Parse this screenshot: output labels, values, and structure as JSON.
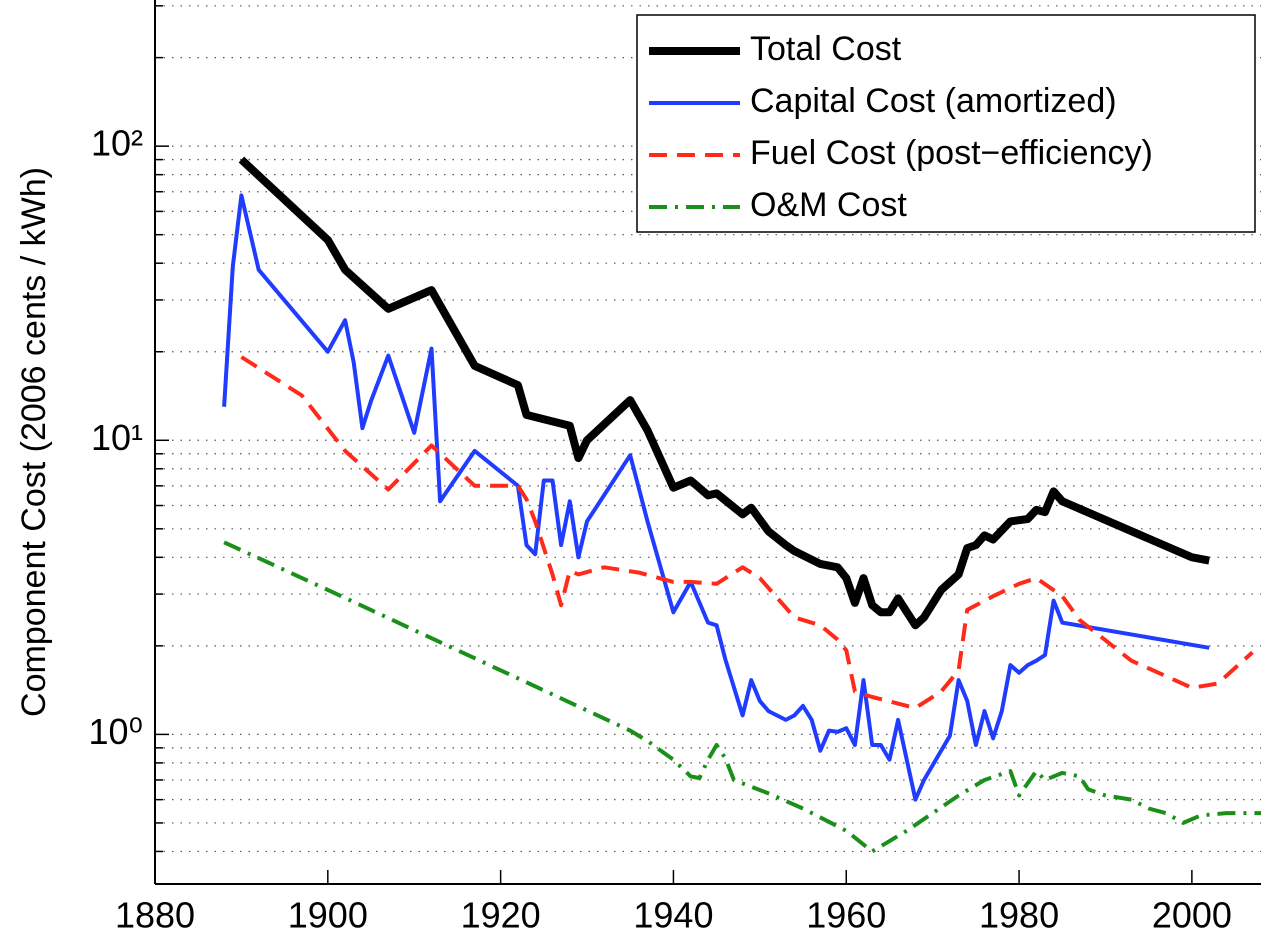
{
  "chart_data": {
    "type": "line",
    "y_label": "Component Cost (2006 cents / kWh)",
    "log_y": true,
    "grid": true,
    "legend": "upper right",
    "xlim": [
      1880,
      2008
    ],
    "xticks": [
      1880,
      1900,
      1920,
      1940,
      1960,
      1980,
      2000
    ],
    "ylim": [
      0.31,
      314
    ],
    "yticks": [
      {
        "value": 1,
        "label": "10⁰"
      },
      {
        "value": 10,
        "label": "10¹"
      },
      {
        "value": 100,
        "label": "10²"
      }
    ],
    "yminorticks": [
      0.4,
      0.5,
      0.6,
      0.7,
      0.8,
      0.9,
      2,
      3,
      4,
      5,
      6,
      7,
      8,
      9,
      20,
      30,
      40,
      50,
      60,
      70,
      80,
      90,
      200,
      300
    ],
    "series": [
      {
        "name": "Total Cost",
        "color": "#000000",
        "line_width": 8,
        "line_style": "solid",
        "x": [
          1890,
          1900,
          1902,
          1907,
          1912,
          1917,
          1922,
          1923,
          1928,
          1929,
          1930,
          1935,
          1937,
          1940,
          1942,
          1944,
          1945,
          1948,
          1949,
          1951,
          1953,
          1954,
          1957,
          1959,
          1960,
          1961,
          1962,
          1963,
          1964,
          1965,
          1966,
          1968,
          1969,
          1971,
          1973,
          1974,
          1975,
          1976,
          1977,
          1979,
          1981,
          1982,
          1983,
          1984,
          1985,
          2000,
          2002
        ],
        "values": [
          90,
          48,
          38,
          28,
          32.4,
          17.9,
          15.4,
          12.2,
          11.2,
          8.7,
          10,
          13.7,
          10.8,
          6.9,
          7.3,
          6.5,
          6.6,
          5.6,
          5.9,
          4.9,
          4.4,
          4.2,
          3.8,
          3.7,
          3.4,
          2.8,
          3.4,
          2.75,
          2.6,
          2.6,
          2.9,
          2.35,
          2.5,
          3.1,
          3.5,
          4.3,
          4.4,
          4.75,
          4.6,
          5.3,
          5.4,
          5.8,
          5.7,
          6.7,
          6.2,
          4.0,
          3.9
        ]
      },
      {
        "name": "Capital Cost (amortized)",
        "color": "#1f3cff",
        "line_width": 4,
        "line_style": "solid",
        "x": [
          1888,
          1889,
          1890,
          1892,
          1900,
          1902,
          1903,
          1904,
          1905,
          1907,
          1910,
          1912,
          1913,
          1917,
          1922,
          1923,
          1924,
          1925,
          1926,
          1927,
          1928,
          1929,
          1930,
          1935,
          1937,
          1940,
          1942,
          1944,
          1945,
          1946,
          1948,
          1949,
          1950,
          1951,
          1953,
          1954,
          1955,
          1956,
          1957,
          1958,
          1959,
          1960,
          1961,
          1962,
          1963,
          1964,
          1965,
          1966,
          1968,
          1969,
          1972,
          1973,
          1974,
          1975,
          1976,
          1977,
          1978,
          1979,
          1980,
          1981,
          1982,
          1983,
          1984,
          1985,
          2002
        ],
        "values": [
          13,
          39,
          68,
          38,
          20,
          25.6,
          18.4,
          11,
          13.6,
          19.4,
          10.6,
          20.5,
          6.2,
          9.2,
          7.0,
          4.4,
          4.1,
          7.3,
          7.3,
          4.4,
          6.2,
          4.0,
          5.3,
          8.9,
          5.3,
          2.6,
          3.3,
          2.4,
          2.35,
          1.8,
          1.16,
          1.53,
          1.3,
          1.2,
          1.12,
          1.16,
          1.25,
          1.12,
          0.88,
          1.03,
          1.02,
          1.05,
          0.92,
          1.53,
          0.92,
          0.92,
          0.82,
          1.12,
          0.6,
          0.7,
          0.99,
          1.53,
          1.3,
          0.92,
          1.2,
          0.97,
          1.2,
          1.72,
          1.62,
          1.72,
          1.78,
          1.86,
          2.85,
          2.4,
          1.97
        ]
      },
      {
        "name": "Fuel Cost (post−efficiency)",
        "color": "#ff2a1a",
        "line_width": 4,
        "line_style": "dashed",
        "x": [
          1890,
          1897,
          1902,
          1907,
          1912,
          1917,
          1922,
          1923,
          1924,
          1926,
          1927,
          1928,
          1929,
          1932,
          1936,
          1940,
          1942,
          1945,
          1948,
          1950,
          1954,
          1957,
          1959,
          1960,
          1961,
          1963,
          1968,
          1971,
          1973,
          1974,
          1977,
          1980,
          1982,
          1985,
          1987,
          1993,
          2000,
          2003,
          2007
        ],
        "values": [
          19.2,
          14.2,
          9.2,
          6.8,
          9.6,
          7.0,
          7.0,
          6.3,
          5.3,
          3.5,
          2.75,
          3.6,
          3.5,
          3.7,
          3.55,
          3.3,
          3.3,
          3.25,
          3.7,
          3.4,
          2.5,
          2.35,
          2.1,
          1.93,
          1.4,
          1.34,
          1.23,
          1.4,
          1.65,
          2.65,
          2.95,
          3.25,
          3.4,
          2.95,
          2.45,
          1.78,
          1.44,
          1.49,
          1.9
        ]
      },
      {
        "name": "O&M Cost",
        "color": "#1a8f1a",
        "line_width": 4,
        "line_style": "dashdot",
        "x": [
          1888,
          1900,
          1935,
          1937,
          1940,
          1942,
          1943,
          1944,
          1945,
          1946,
          1947,
          1951,
          1955,
          1960,
          1963,
          1967,
          1973,
          1976,
          1979,
          1980,
          1982,
          1983,
          1985,
          1987,
          1988,
          1990,
          1993,
          1995,
          1997,
          1999,
          2001,
          2004,
          2008
        ],
        "values": [
          4.5,
          3.1,
          1.03,
          0.95,
          0.82,
          0.72,
          0.71,
          0.82,
          0.92,
          0.83,
          0.7,
          0.63,
          0.56,
          0.47,
          0.4,
          0.47,
          0.62,
          0.7,
          0.75,
          0.62,
          0.75,
          0.7,
          0.74,
          0.72,
          0.65,
          0.62,
          0.6,
          0.56,
          0.54,
          0.5,
          0.53,
          0.54,
          0.54
        ]
      }
    ]
  }
}
